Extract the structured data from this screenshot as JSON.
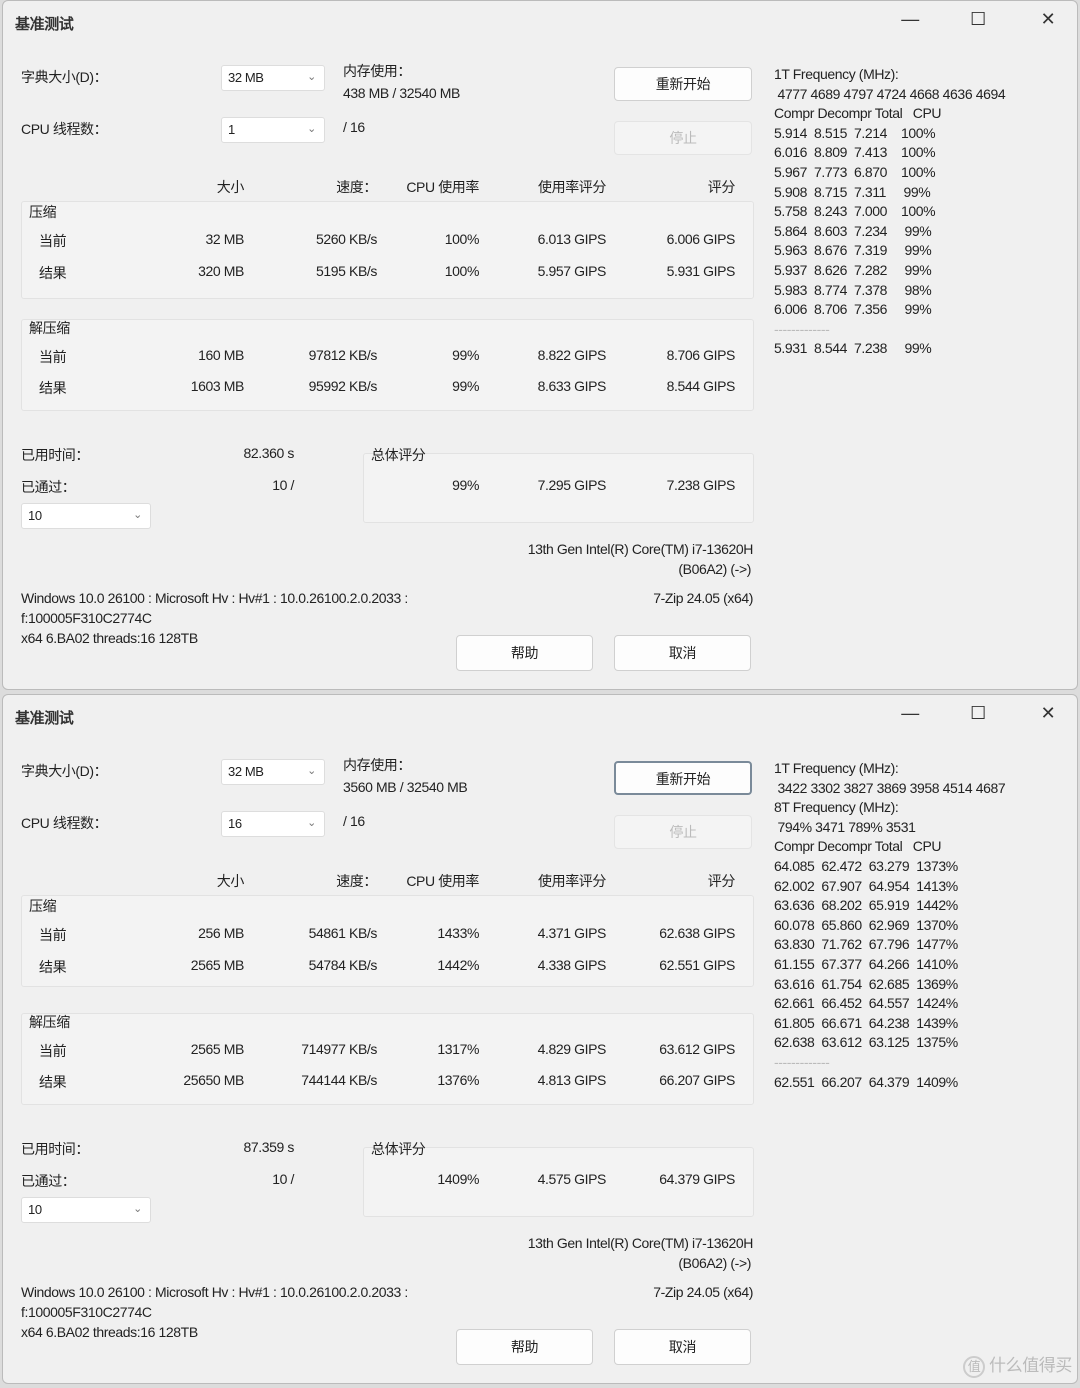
{
  "labels": {
    "title": "基准测试",
    "dict": "字典大小(D)：",
    "mem": "内存使用：",
    "threads": "CPU 线程数：",
    "restart": "重新开始",
    "stop": "停止",
    "h_size": "大小",
    "h_speed": "速度：",
    "h_cpu": "CPU 使用率",
    "h_rating_usage": "使用率评分",
    "h_rating": "评分",
    "compress": "压缩",
    "decompress": "解压缩",
    "current": "当前",
    "result": "结果",
    "elapsed": "已用时间：",
    "passed": "已通过：",
    "total": "总体评分",
    "help": "帮助",
    "cancel": "取消",
    "minimize": "—",
    "maximize": "☐",
    "close": "✕"
  },
  "windows": [
    {
      "dict_size": "32 MB",
      "memory": "438 MB / 32540 MB",
      "threads": "1",
      "threads_max": "/ 16",
      "compress": {
        "current": [
          "32 MB",
          "5260 KB/s",
          "100%",
          "6.013 GIPS",
          "6.006 GIPS"
        ],
        "result": [
          "320 MB",
          "5195 KB/s",
          "100%",
          "5.957 GIPS",
          "5.931 GIPS"
        ]
      },
      "decompress": {
        "current": [
          "160 MB",
          "97812 KB/s",
          "99%",
          "8.822 GIPS",
          "8.706 GIPS"
        ],
        "result": [
          "1603 MB",
          "95992 KB/s",
          "99%",
          "8.633 GIPS",
          "8.544 GIPS"
        ]
      },
      "elapsed": "82.360 s",
      "passed": "10 /",
      "passes_select": "10",
      "total": [
        "99%",
        "7.295 GIPS",
        "7.238 GIPS"
      ],
      "cpu_name": "13th Gen Intel(R) Core(TM) i7-13620H",
      "cpu_id": "(B06A2) (->)",
      "os_line1": "Windows 10.0 26100 : Microsoft Hv : Hv#1 : 10.0.26100.2.0.2033 :",
      "os_line2": "f:100005F310C2774C",
      "os_line3": "x64 6.BA02 threads:16 128TB",
      "version": "7-Zip 24.05 (x64)",
      "log": [
        "1T Frequency (MHz):",
        " 4777 4689 4797 4724 4668 4636 4694",
        "Compr Decompr Total   CPU",
        "5.914  8.515  7.214    100%",
        "6.016  8.809  7.413    100%",
        "5.967  7.773  6.870    100%",
        "5.908  8.715  7.311     99%",
        "5.758  8.243  7.000    100%",
        "5.864  8.603  7.234     99%",
        "5.963  8.676  7.319     99%",
        "5.937  8.626  7.282     99%",
        "5.983  8.774  7.378     98%",
        "6.006  8.706  7.356     99%",
        "-------------",
        "5.931  8.544  7.238     99%"
      ]
    },
    {
      "dict_size": "32 MB",
      "memory": "3560 MB / 32540 MB",
      "threads": "16",
      "threads_max": "/ 16",
      "compress": {
        "current": [
          "256 MB",
          "54861 KB/s",
          "1433%",
          "4.371 GIPS",
          "62.638 GIPS"
        ],
        "result": [
          "2565 MB",
          "54784 KB/s",
          "1442%",
          "4.338 GIPS",
          "62.551 GIPS"
        ]
      },
      "decompress": {
        "current": [
          "2565 MB",
          "714977 KB/s",
          "1317%",
          "4.829 GIPS",
          "63.612 GIPS"
        ],
        "result": [
          "25650 MB",
          "744144 KB/s",
          "1376%",
          "4.813 GIPS",
          "66.207 GIPS"
        ]
      },
      "elapsed": "87.359 s",
      "passed": "10 /",
      "passes_select": "10",
      "total": [
        "1409%",
        "4.575 GIPS",
        "64.379 GIPS"
      ],
      "cpu_name": "13th Gen Intel(R) Core(TM) i7-13620H",
      "cpu_id": "(B06A2) (->)",
      "os_line1": "Windows 10.0 26100 : Microsoft Hv : Hv#1 : 10.0.26100.2.0.2033 :",
      "os_line2": "f:100005F310C2774C",
      "os_line3": "x64 6.BA02 threads:16 128TB",
      "version": "7-Zip 24.05 (x64)",
      "log": [
        "1T Frequency (MHz):",
        " 3422 3302 3827 3869 3958 4514 4687",
        "8T Frequency (MHz):",
        " 794% 3471 789% 3531",
        "Compr Decompr Total   CPU",
        "64.085  62.472  63.279  1373%",
        "62.002  67.907  64.954  1413%",
        "63.636  68.202  65.919  1442%",
        "60.078  65.860  62.969  1370%",
        "63.830  71.762  67.796  1477%",
        "61.155  67.377  64.266  1410%",
        "63.616  61.754  62.685  1369%",
        "62.661  66.452  64.557  1424%",
        "61.805  66.671  64.238  1439%",
        "62.638  63.612  63.125  1375%",
        "-------------",
        "62.551  66.207  64.379  1409%"
      ]
    }
  ],
  "watermark": "值 什么值得买"
}
